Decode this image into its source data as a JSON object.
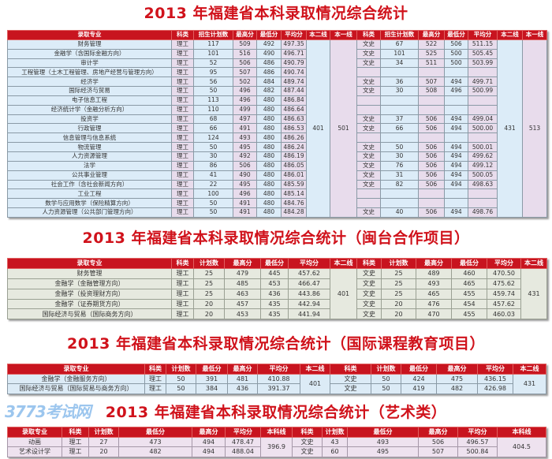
{
  "watermark": "3773考试网",
  "watermark_url": "3773.com",
  "tables": [
    {
      "title": "2013 年福建省本科录取情况综合统计",
      "headers": [
        "录取专业",
        "科类",
        "招生计划数",
        "最高分",
        "最低分",
        "平均分",
        "本二线",
        "本一线",
        "科类",
        "招生计划数",
        "最高分",
        "最低分",
        "平均分",
        "本二线",
        "本一线"
      ],
      "mid_merged": [
        "401",
        "501"
      ],
      "end_merged": [
        "431",
        "513"
      ],
      "rows": [
        {
          "left": [
            "财务管理",
            "理工",
            "117",
            "509",
            "492",
            "497.35"
          ],
          "right": [
            "文史",
            "67",
            "522",
            "506",
            "511.15"
          ]
        },
        {
          "left": [
            "金融学（含国际金融方向）",
            "理工",
            "101",
            "516",
            "490",
            "496.71"
          ],
          "right": [
            "文史",
            "101",
            "525",
            "500",
            "505.45"
          ]
        },
        {
          "left": [
            "审计学",
            "理工",
            "52",
            "506",
            "486",
            "490.79"
          ],
          "right": [
            "文史",
            "34",
            "511",
            "500",
            "503.99"
          ]
        },
        {
          "left": [
            "工程管理（土木工程管理、房地产经营与管理方向）",
            "理工",
            "95",
            "507",
            "486",
            "490.74"
          ],
          "right": [
            "",
            "",
            "",
            "",
            ""
          ]
        },
        {
          "left": [
            "经济学",
            "理工",
            "56",
            "502",
            "484",
            "489.74"
          ],
          "right": [
            "文史",
            "36",
            "507",
            "494",
            "499.71"
          ]
        },
        {
          "left": [
            "国际经济与贸易",
            "理工",
            "50",
            "496",
            "482",
            "487.44"
          ],
          "right": [
            "文史",
            "30",
            "508",
            "496",
            "500.99"
          ]
        },
        {
          "left": [
            "电子信息工程",
            "理工",
            "113",
            "496",
            "480",
            "486.84"
          ],
          "right": [
            "",
            "",
            "",
            "",
            ""
          ]
        },
        {
          "left": [
            "经济统计学（金融分析方向）",
            "理工",
            "110",
            "499",
            "480",
            "486.64"
          ],
          "right": [
            "",
            "",
            "",
            "",
            ""
          ]
        },
        {
          "left": [
            "投资学",
            "理工",
            "68",
            "497",
            "480",
            "486.63"
          ],
          "right": [
            "文史",
            "37",
            "506",
            "494",
            "499.04"
          ]
        },
        {
          "left": [
            "行政管理",
            "理工",
            "66",
            "491",
            "480",
            "486.53"
          ],
          "right": [
            "文史",
            "66",
            "506",
            "494",
            "500.00"
          ]
        },
        {
          "left": [
            "信息管理与信息系统",
            "理工",
            "124",
            "493",
            "480",
            "486.26"
          ],
          "right": [
            "",
            "",
            "",
            "",
            ""
          ]
        },
        {
          "left": [
            "物流管理",
            "理工",
            "50",
            "495",
            "480",
            "486.24"
          ],
          "right": [
            "文史",
            "50",
            "506",
            "494",
            "500.01"
          ]
        },
        {
          "left": [
            "人力资源管理",
            "理工",
            "30",
            "492",
            "480",
            "486.19"
          ],
          "right": [
            "文史",
            "30",
            "506",
            "494",
            "499.62"
          ]
        },
        {
          "left": [
            "法学",
            "理工",
            "86",
            "506",
            "480",
            "486.05"
          ],
          "right": [
            "文史",
            "76",
            "506",
            "494",
            "499.12"
          ]
        },
        {
          "left": [
            "公共事业管理",
            "理工",
            "41",
            "490",
            "480",
            "486.01"
          ],
          "right": [
            "文史",
            "31",
            "506",
            "494",
            "500.05"
          ]
        },
        {
          "left": [
            "社会工作（含社会新闻方向）",
            "理工",
            "22",
            "495",
            "480",
            "485.59"
          ],
          "right": [
            "文史",
            "82",
            "506",
            "494",
            "498.63"
          ]
        },
        {
          "left": [
            "工业工程",
            "理工",
            "100",
            "496",
            "480",
            "485.14"
          ],
          "right": [
            "",
            "",
            "",
            "",
            ""
          ]
        },
        {
          "left": [
            "数学与应用数学（保险精算方向）",
            "理工",
            "50",
            "491",
            "480",
            "484.76"
          ],
          "right": [
            "",
            "",
            "",
            "",
            ""
          ]
        },
        {
          "left": [
            "人力资源管理（公共部门管理方向）",
            "理工",
            "50",
            "491",
            "480",
            "484.28"
          ],
          "right": [
            "文史",
            "40",
            "506",
            "494",
            "498.76"
          ]
        }
      ]
    },
    {
      "title": "2013 年福建省本科录取情况综合统计（闽台合作项目）",
      "headers": [
        "录取专业",
        "科类",
        "计划数",
        "最高分",
        "最低分",
        "平均分",
        "本二线",
        "科类",
        "计划数",
        "最高分",
        "最低分",
        "平均分",
        "本二线"
      ],
      "mid_merged": [
        "401"
      ],
      "end_merged": [
        "431"
      ],
      "rows": [
        {
          "left": [
            "财务管理",
            "理工",
            "25",
            "479",
            "445",
            "457.62"
          ],
          "right": [
            "文史",
            "25",
            "489",
            "460",
            "470.50"
          ]
        },
        {
          "left": [
            "金融学（金融管理方向）",
            "理工",
            "25",
            "485",
            "453",
            "466.47"
          ],
          "right": [
            "文史",
            "25",
            "493",
            "465",
            "475.62"
          ]
        },
        {
          "left": [
            "金融学（投资理财方向）",
            "理工",
            "25",
            "463",
            "436",
            "443.86"
          ],
          "right": [
            "文史",
            "25",
            "465",
            "455",
            "459.74"
          ]
        },
        {
          "left": [
            "金融学（证券期货方向）",
            "理工",
            "20",
            "457",
            "435",
            "442.94"
          ],
          "right": [
            "文史",
            "20",
            "476",
            "454",
            "457.62"
          ]
        },
        {
          "left": [
            "国际经济与贸易（国际商务方向）",
            "理工",
            "20",
            "453",
            "435",
            "441.94"
          ],
          "right": [
            "文史",
            "20",
            "470",
            "455",
            "460.03"
          ]
        }
      ]
    },
    {
      "title": "2013 年福建省本科录取情况综合统计（国际课程教育项目）",
      "headers": [
        "录取专业",
        "科类",
        "计划数",
        "最低分",
        "最高分",
        "平均分",
        "本二线",
        "科类",
        "计划数",
        "最低分",
        "最高分",
        "平均分",
        "本二线"
      ],
      "mid_merged": [
        "401"
      ],
      "end_merged": [
        "431"
      ],
      "rows": [
        {
          "left": [
            "金融学（金融服务方向）",
            "理工",
            "50",
            "391",
            "481",
            "410.88"
          ],
          "right": [
            "文史",
            "50",
            "424",
            "475",
            "436.15"
          ]
        },
        {
          "left": [
            "国际经济与贸易（国际贸易与商务方向）",
            "理工",
            "50",
            "384",
            "436",
            "391.37"
          ],
          "right": [
            "文史",
            "50",
            "419",
            "482",
            "426.98"
          ]
        }
      ]
    },
    {
      "title": "2013 年福建省本科录取情况综合统计（艺术类）",
      "headers": [
        "录取专业",
        "科类",
        "计划数",
        "最低分",
        "最高分",
        "平均分",
        "本科线",
        "科类",
        "计划数",
        "最低分",
        "最高分",
        "平均分",
        "本科线"
      ],
      "mid_merged": [
        "396.9"
      ],
      "end_merged": [
        "404.5"
      ],
      "rows": [
        {
          "left": [
            "动画",
            "理工",
            "27",
            "473",
            "494",
            "478.47"
          ],
          "right": [
            "文史",
            "43",
            "493",
            "506",
            "496.57"
          ]
        },
        {
          "left": [
            "艺术设计学",
            "理工",
            "20",
            "482",
            "494",
            "488.04"
          ],
          "right": [
            "文史",
            "60",
            "495",
            "507",
            "500.84"
          ]
        }
      ]
    }
  ]
}
